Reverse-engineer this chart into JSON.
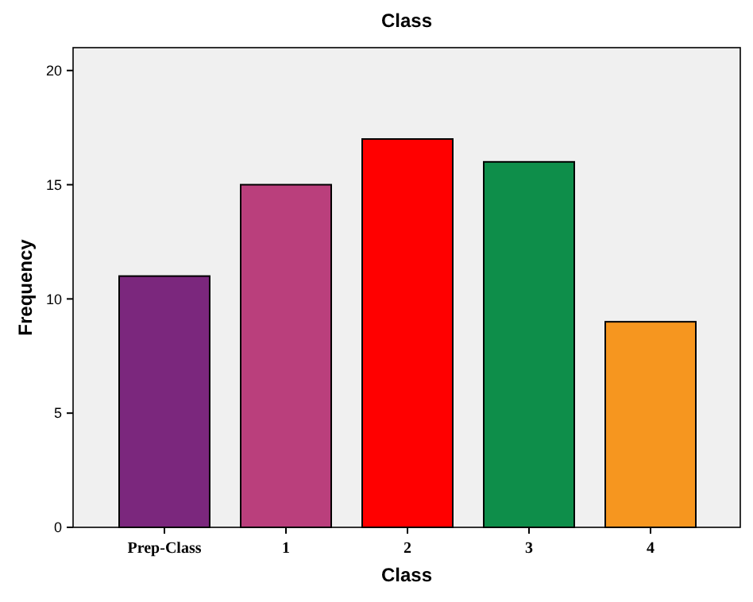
{
  "chart_data": {
    "type": "bar",
    "title": "Class",
    "xlabel": "Class",
    "ylabel": "Frequency",
    "categories": [
      "Prep-Class",
      "1",
      "2",
      "3",
      "4"
    ],
    "values": [
      11,
      15,
      17,
      16,
      9
    ],
    "colors": [
      "#7b277d",
      "#ba3f7c",
      "#ff0000",
      "#0e8e4a",
      "#f6961f"
    ],
    "ylim": [
      0,
      21
    ],
    "yticks": [
      0,
      5,
      10,
      15,
      20
    ],
    "grid": false
  }
}
